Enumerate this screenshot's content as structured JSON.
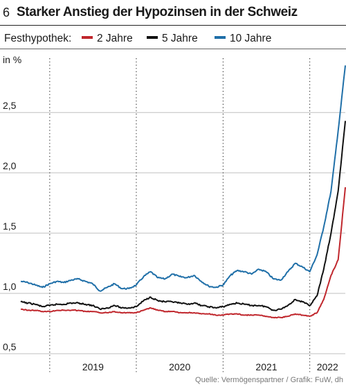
{
  "header": {
    "figure_number": "6",
    "title": "Starker Anstieg der Hypozinsen in der Schweiz"
  },
  "legend": {
    "label": "Festhypothek:",
    "items": [
      {
        "label": "2 Jahre",
        "color": "#c0272d"
      },
      {
        "label": "5 Jahre",
        "color": "#111111"
      },
      {
        "label": "10 Jahre",
        "color": "#1f6fa8"
      }
    ]
  },
  "source": "Quelle: Vermögenspartner / Grafik: FuW, dh",
  "chart_data": {
    "type": "line",
    "ylabel": "in %",
    "ylim": [
      0.5,
      2.95
    ],
    "yticks": [
      0.5,
      1.0,
      1.5,
      2.0,
      2.5
    ],
    "ytick_labels": [
      "0,5",
      "1,0",
      "1,5",
      "2,0",
      "2,5"
    ],
    "xlim": [
      "2018-09-01",
      "2022-05-31"
    ],
    "year_boundaries": [
      "2019-01-01",
      "2020-01-01",
      "2021-01-01",
      "2022-01-01"
    ],
    "xtick_labels": [
      "2019",
      "2020",
      "2021",
      "2022"
    ],
    "grid": "vertical-dotted",
    "series": [
      {
        "name": "10 Jahre",
        "color": "#1f6fa8",
        "x": [
          "2018-09-01",
          "2018-10-01",
          "2018-11-01",
          "2018-12-01",
          "2019-01-01",
          "2019-02-01",
          "2019-03-01",
          "2019-04-01",
          "2019-05-01",
          "2019-06-01",
          "2019-07-01",
          "2019-08-01",
          "2019-09-01",
          "2019-10-01",
          "2019-11-01",
          "2019-12-01",
          "2020-01-01",
          "2020-02-01",
          "2020-03-01",
          "2020-04-01",
          "2020-05-01",
          "2020-06-01",
          "2020-07-01",
          "2020-08-01",
          "2020-09-01",
          "2020-10-01",
          "2020-11-01",
          "2020-12-01",
          "2021-01-01",
          "2021-02-01",
          "2021-03-01",
          "2021-04-01",
          "2021-05-01",
          "2021-06-01",
          "2021-07-01",
          "2021-08-01",
          "2021-09-01",
          "2021-10-01",
          "2021-11-01",
          "2021-12-01",
          "2022-01-01",
          "2022-02-01",
          "2022-03-01",
          "2022-04-01",
          "2022-05-01",
          "2022-05-31"
        ],
        "values": [
          1.1,
          1.09,
          1.07,
          1.05,
          1.08,
          1.1,
          1.09,
          1.11,
          1.12,
          1.1,
          1.08,
          1.02,
          1.05,
          1.08,
          1.04,
          1.04,
          1.07,
          1.14,
          1.18,
          1.13,
          1.12,
          1.16,
          1.14,
          1.13,
          1.15,
          1.1,
          1.06,
          1.05,
          1.07,
          1.15,
          1.19,
          1.18,
          1.16,
          1.2,
          1.18,
          1.12,
          1.11,
          1.18,
          1.25,
          1.22,
          1.18,
          1.32,
          1.55,
          1.85,
          2.35,
          2.89
        ]
      },
      {
        "name": "5 Jahre",
        "color": "#111111",
        "x": [
          "2018-09-01",
          "2018-10-01",
          "2018-11-01",
          "2018-12-01",
          "2019-01-01",
          "2019-02-01",
          "2019-03-01",
          "2019-04-01",
          "2019-05-01",
          "2019-06-01",
          "2019-07-01",
          "2019-08-01",
          "2019-09-01",
          "2019-10-01",
          "2019-11-01",
          "2019-12-01",
          "2020-01-01",
          "2020-02-01",
          "2020-03-01",
          "2020-04-01",
          "2020-05-01",
          "2020-06-01",
          "2020-07-01",
          "2020-08-01",
          "2020-09-01",
          "2020-10-01",
          "2020-11-01",
          "2020-12-01",
          "2021-01-01",
          "2021-02-01",
          "2021-03-01",
          "2021-04-01",
          "2021-05-01",
          "2021-06-01",
          "2021-07-01",
          "2021-08-01",
          "2021-09-01",
          "2021-10-01",
          "2021-11-01",
          "2021-12-01",
          "2022-01-01",
          "2022-02-01",
          "2022-03-01",
          "2022-04-01",
          "2022-05-01",
          "2022-05-31"
        ],
        "values": [
          0.93,
          0.92,
          0.91,
          0.89,
          0.9,
          0.91,
          0.91,
          0.92,
          0.92,
          0.91,
          0.9,
          0.87,
          0.88,
          0.9,
          0.88,
          0.88,
          0.89,
          0.94,
          0.97,
          0.94,
          0.93,
          0.93,
          0.92,
          0.91,
          0.92,
          0.9,
          0.89,
          0.88,
          0.89,
          0.91,
          0.92,
          0.91,
          0.9,
          0.9,
          0.89,
          0.86,
          0.87,
          0.9,
          0.95,
          0.93,
          0.9,
          0.98,
          1.2,
          1.5,
          1.85,
          2.43
        ]
      },
      {
        "name": "2 Jahre",
        "color": "#c0272d",
        "x": [
          "2018-09-01",
          "2018-10-01",
          "2018-11-01",
          "2018-12-01",
          "2019-01-01",
          "2019-02-01",
          "2019-03-01",
          "2019-04-01",
          "2019-05-01",
          "2019-06-01",
          "2019-07-01",
          "2019-08-01",
          "2019-09-01",
          "2019-10-01",
          "2019-11-01",
          "2019-12-01",
          "2020-01-01",
          "2020-02-01",
          "2020-03-01",
          "2020-04-01",
          "2020-05-01",
          "2020-06-01",
          "2020-07-01",
          "2020-08-01",
          "2020-09-01",
          "2020-10-01",
          "2020-11-01",
          "2020-12-01",
          "2021-01-01",
          "2021-02-01",
          "2021-03-01",
          "2021-04-01",
          "2021-05-01",
          "2021-06-01",
          "2021-07-01",
          "2021-08-01",
          "2021-09-01",
          "2021-10-01",
          "2021-11-01",
          "2021-12-01",
          "2022-01-01",
          "2022-02-01",
          "2022-03-01",
          "2022-04-01",
          "2022-05-01",
          "2022-05-31"
        ],
        "values": [
          0.87,
          0.86,
          0.86,
          0.85,
          0.85,
          0.86,
          0.86,
          0.86,
          0.86,
          0.85,
          0.85,
          0.84,
          0.84,
          0.85,
          0.84,
          0.84,
          0.84,
          0.86,
          0.88,
          0.86,
          0.85,
          0.85,
          0.84,
          0.84,
          0.84,
          0.83,
          0.83,
          0.82,
          0.82,
          0.83,
          0.83,
          0.82,
          0.82,
          0.82,
          0.81,
          0.8,
          0.8,
          0.81,
          0.83,
          0.82,
          0.81,
          0.84,
          0.95,
          1.15,
          1.28,
          1.88
        ]
      }
    ]
  }
}
